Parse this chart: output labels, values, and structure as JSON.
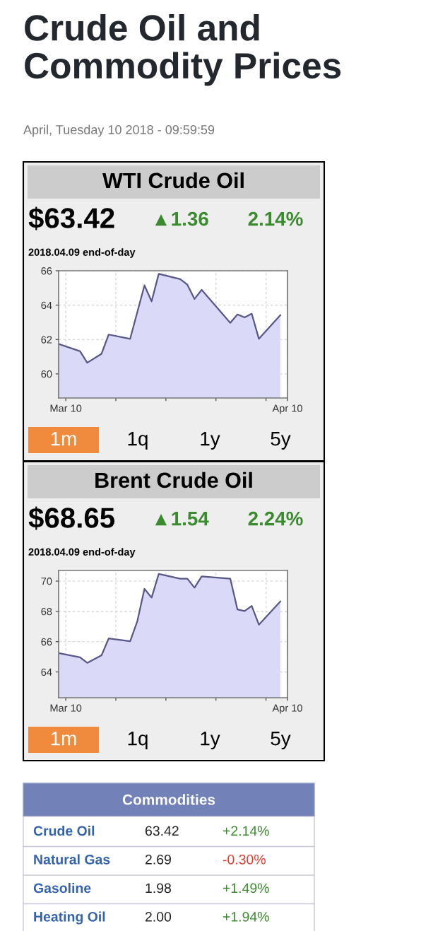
{
  "chart_data": [
    {
      "type": "other",
      "title": "Crude Oil and Commodity Prices",
      "subtitle": "April, Tuesday 10 2018 - 09:59:59"
    },
    {
      "type": "area",
      "title": "WTI Crude Oil",
      "annotations": [
        "$63.42",
        "▲1.36",
        "2.14%",
        "2018.04.09 end-of-day",
        "1m",
        "1q",
        "1y",
        "5y"
      ],
      "x": [
        "2018-03-09",
        "2018-03-12",
        "2018-03-13",
        "2018-03-15",
        "2018-03-16",
        "2018-03-19",
        "2018-03-21",
        "2018-03-22",
        "2018-03-23",
        "2018-03-26",
        "2018-03-27",
        "2018-03-28",
        "2018-03-29",
        "2018-04-02",
        "2018-04-03",
        "2018-04-04",
        "2018-04-05",
        "2018-04-06",
        "2018-04-09"
      ],
      "series": [
        {
          "color": "#dadaf8",
          "values": [
            61.74,
            61.32,
            60.65,
            61.17,
            62.29,
            62.04,
            65.15,
            64.22,
            65.82,
            65.51,
            65.19,
            64.36,
            64.89,
            62.97,
            63.46,
            63.29,
            63.5,
            62.04,
            63.42
          ]
        }
      ],
      "xlim": [
        "2018-03-09",
        "2018-04-10"
      ],
      "ylim": [
        58.6,
        66.0
      ],
      "yticks": [
        60,
        62,
        64,
        66
      ],
      "xticks": [
        {
          "value": "2018-03-10",
          "label": "Mar 10"
        },
        {
          "value": "2018-03-17",
          "label": null
        },
        {
          "value": "2018-03-24",
          "label": null
        },
        {
          "value": "2018-03-31",
          "label": null
        },
        {
          "value": "2018-04-07",
          "label": null
        },
        {
          "value": "2018-04-10",
          "label": "Apr 10"
        }
      ],
      "grid": true
    },
    {
      "type": "area",
      "title": "Brent Crude Oil",
      "annotations": [
        "$68.65",
        "▲1.54",
        "2.24%",
        "2018.04.09 end-of-day",
        "1m",
        "1q",
        "1y",
        "5y"
      ],
      "x": [
        "2018-03-09",
        "2018-03-12",
        "2018-03-13",
        "2018-03-15",
        "2018-03-16",
        "2018-03-19",
        "2018-03-20",
        "2018-03-21",
        "2018-03-22",
        "2018-03-23",
        "2018-03-26",
        "2018-03-27",
        "2018-03-28",
        "2018-03-29",
        "2018-04-02",
        "2018-04-03",
        "2018-04-04",
        "2018-04-05",
        "2018-04-06",
        "2018-04-09"
      ],
      "series": [
        {
          "color": "#dadaf8",
          "values": [
            65.25,
            64.97,
            64.6,
            65.1,
            66.21,
            66.03,
            67.35,
            69.49,
            68.91,
            70.47,
            70.16,
            70.16,
            69.56,
            70.31,
            70.16,
            68.13,
            68.02,
            68.36,
            67.12,
            68.65
          ]
        }
      ],
      "xlim": [
        "2018-03-09",
        "2018-04-10"
      ],
      "ylim": [
        62.3,
        70.7
      ],
      "yticks": [
        64,
        66,
        68,
        70
      ],
      "xticks": [
        {
          "value": "2018-03-10",
          "label": "Mar 10"
        },
        {
          "value": "2018-03-17",
          "label": null
        },
        {
          "value": "2018-03-24",
          "label": null
        },
        {
          "value": "2018-03-31",
          "label": null
        },
        {
          "value": "2018-04-07",
          "label": null
        },
        {
          "value": "2018-04-10",
          "label": "Apr 10"
        }
      ],
      "grid": true
    },
    {
      "type": "other",
      "title": "Commodities",
      "categories": [
        "Crude Oil",
        "Natural Gas",
        "Gasoline",
        "Heating Oil"
      ],
      "series": [
        {
          "values": [
            63.42,
            2.69,
            1.98,
            2.0
          ],
          "value_labels": [
            "63.42",
            "2.69",
            "1.98",
            "2.00"
          ]
        },
        {
          "values": [
            2.14,
            -0.3,
            1.49,
            1.94
          ],
          "value_labels": [
            "+2.14%",
            "-0.30%",
            "+1.49%",
            "+1.94%"
          ]
        }
      ]
    }
  ]
}
